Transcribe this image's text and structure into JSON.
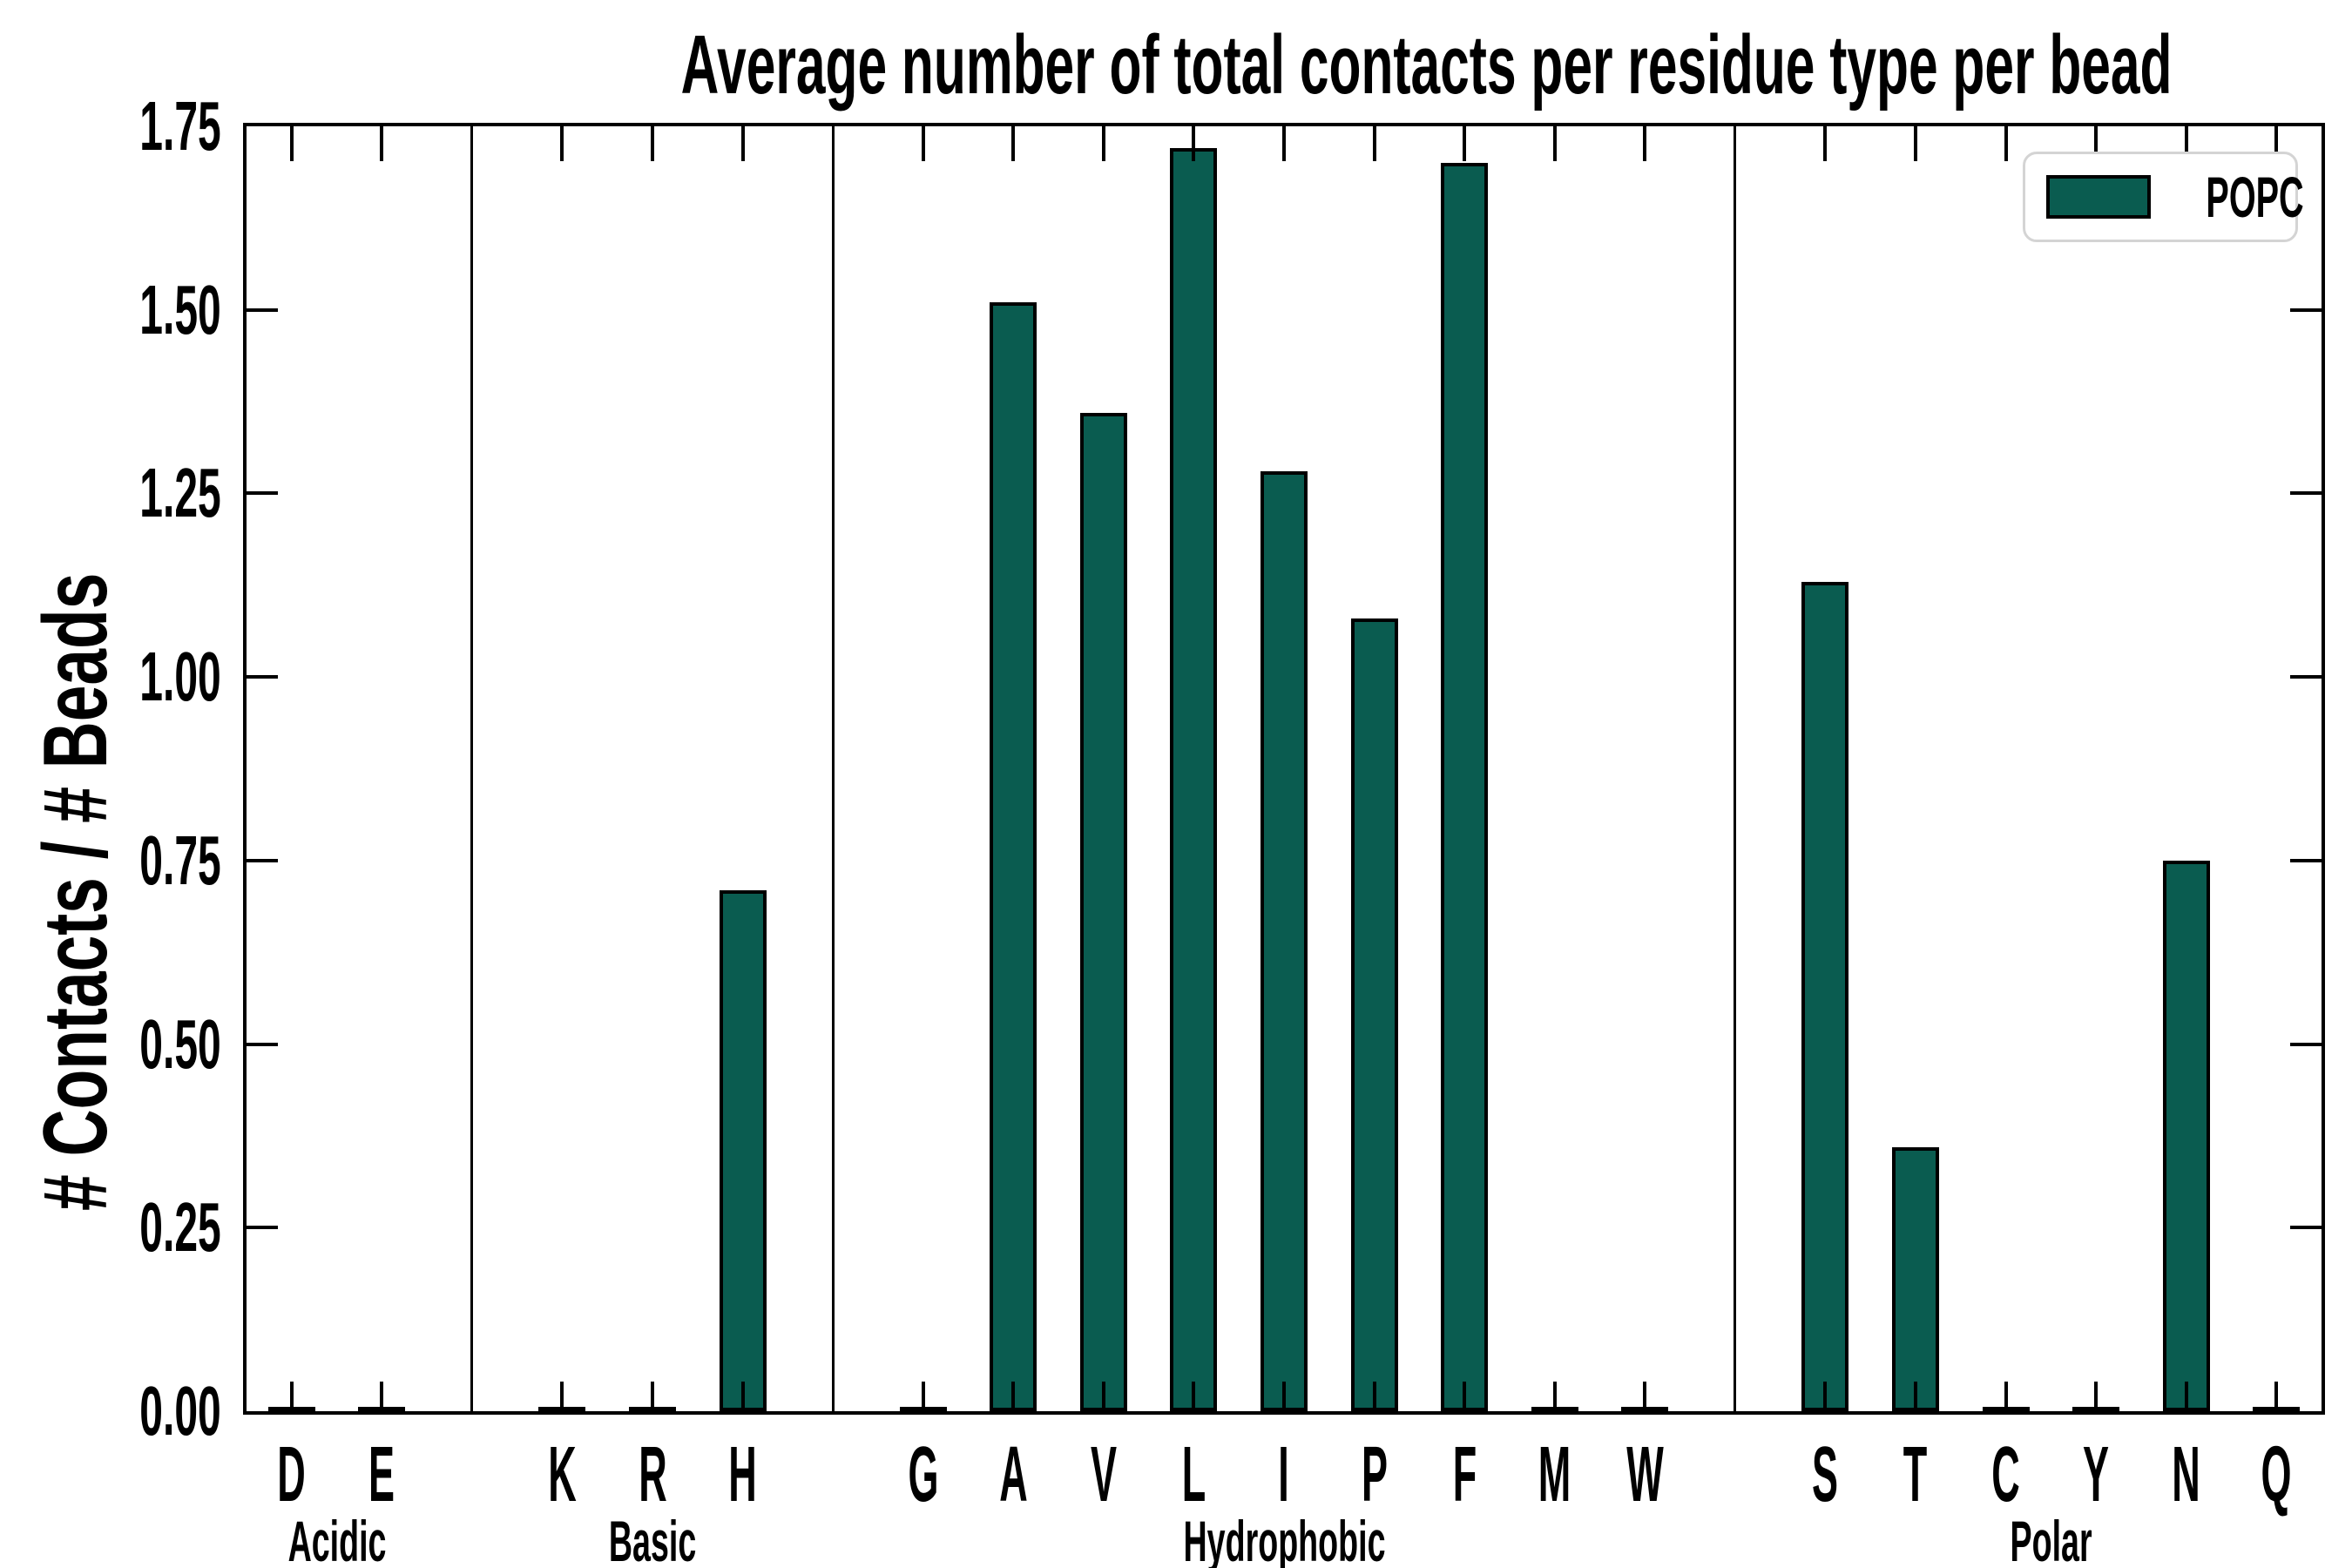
{
  "chart_data": {
    "type": "bar",
    "title": "Average number of total contacts per residue type per bead",
    "ylabel": "# Contacts / # Beads",
    "xlabel": "",
    "ylim": [
      0,
      1.75
    ],
    "ytick_step": 0.25,
    "ytick_labels": [
      "0.00",
      "0.25",
      "0.50",
      "0.75",
      "1.00",
      "1.25",
      "1.50",
      "1.75"
    ],
    "grid": false,
    "legend_position": "upper right",
    "series_name": "POPC",
    "groups": [
      {
        "name": "Acidic",
        "categories": [
          "D",
          "E"
        ],
        "values": [
          0,
          0
        ]
      },
      {
        "name": "Basic",
        "categories": [
          "K",
          "R",
          "H"
        ],
        "values": [
          0,
          0,
          0.71
        ]
      },
      {
        "name": "Hydrophobic",
        "categories": [
          "G",
          "A",
          "V",
          "L",
          "I",
          "P",
          "F",
          "M",
          "W"
        ],
        "values": [
          0,
          1.51,
          1.36,
          1.72,
          1.28,
          1.08,
          1.7,
          0,
          0
        ]
      },
      {
        "name": "Polar",
        "categories": [
          "S",
          "T",
          "C",
          "Y",
          "N",
          "Q"
        ],
        "values": [
          1.13,
          0.36,
          0,
          0,
          0.75,
          0
        ]
      }
    ]
  },
  "colors": {
    "bar_fill": "#0a5c50",
    "bar_edge": "#000000",
    "axis": "#000000",
    "legend_border": "#d4d4d4",
    "background": "#ffffff"
  },
  "legend": {
    "label": "POPC"
  }
}
